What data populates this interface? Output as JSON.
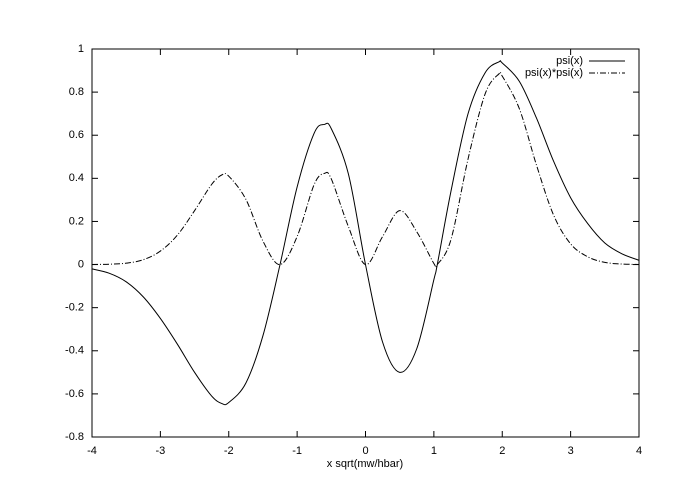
{
  "chart_data": {
    "type": "line",
    "x_label": "x sqrt(mw/hbar)",
    "x": [
      -4,
      -3.75,
      -3.5,
      -3.25,
      -3,
      -2.75,
      -2.5,
      -2.25,
      -2.1,
      -2,
      -1.75,
      -1.5,
      -1.25,
      -1,
      -0.75,
      -0.6,
      -0.5,
      -0.25,
      0,
      0.25,
      0.5,
      0.75,
      1,
      1.05,
      1.25,
      1.5,
      1.75,
      1.95,
      2,
      2.25,
      2.5,
      2.75,
      3,
      3.25,
      3.5,
      3.75,
      4
    ],
    "series": [
      {
        "name": "psi(x)",
        "color": "#000000",
        "dash": "solid",
        "values": [
          -0.02,
          -0.04,
          -0.08,
          -0.15,
          -0.25,
          -0.37,
          -0.5,
          -0.61,
          -0.645,
          -0.64,
          -0.55,
          -0.33,
          0,
          0.36,
          0.61,
          0.65,
          0.63,
          0.42,
          0,
          -0.36,
          -0.5,
          -0.39,
          -0.07,
          0,
          0.34,
          0.7,
          0.89,
          0.94,
          0.935,
          0.85,
          0.68,
          0.48,
          0.31,
          0.19,
          0.1,
          0.05,
          0.02
        ]
      },
      {
        "name": "psi(x)*psi(x)",
        "color": "#000000",
        "dash": "dashdot",
        "values": [
          0.0004,
          0.0016,
          0.0064,
          0.0225,
          0.0625,
          0.137,
          0.25,
          0.372,
          0.416,
          0.41,
          0.303,
          0.109,
          0,
          0.13,
          0.372,
          0.423,
          0.397,
          0.176,
          0,
          0.13,
          0.25,
          0.152,
          0.005,
          0,
          0.116,
          0.49,
          0.792,
          0.884,
          0.874,
          0.723,
          0.462,
          0.23,
          0.096,
          0.036,
          0.01,
          0.0025,
          0.0004
        ]
      }
    ],
    "xlim": [
      -4,
      4
    ],
    "xticks": [
      -4,
      -3,
      -2,
      -1,
      0,
      1,
      2,
      3,
      4
    ],
    "ylim": [
      -0.8,
      1
    ],
    "yticks": [
      -0.8,
      -0.6,
      -0.4,
      -0.2,
      0,
      0.2,
      0.4,
      0.6,
      0.8,
      1
    ],
    "legend": "top-right",
    "grid": false
  }
}
